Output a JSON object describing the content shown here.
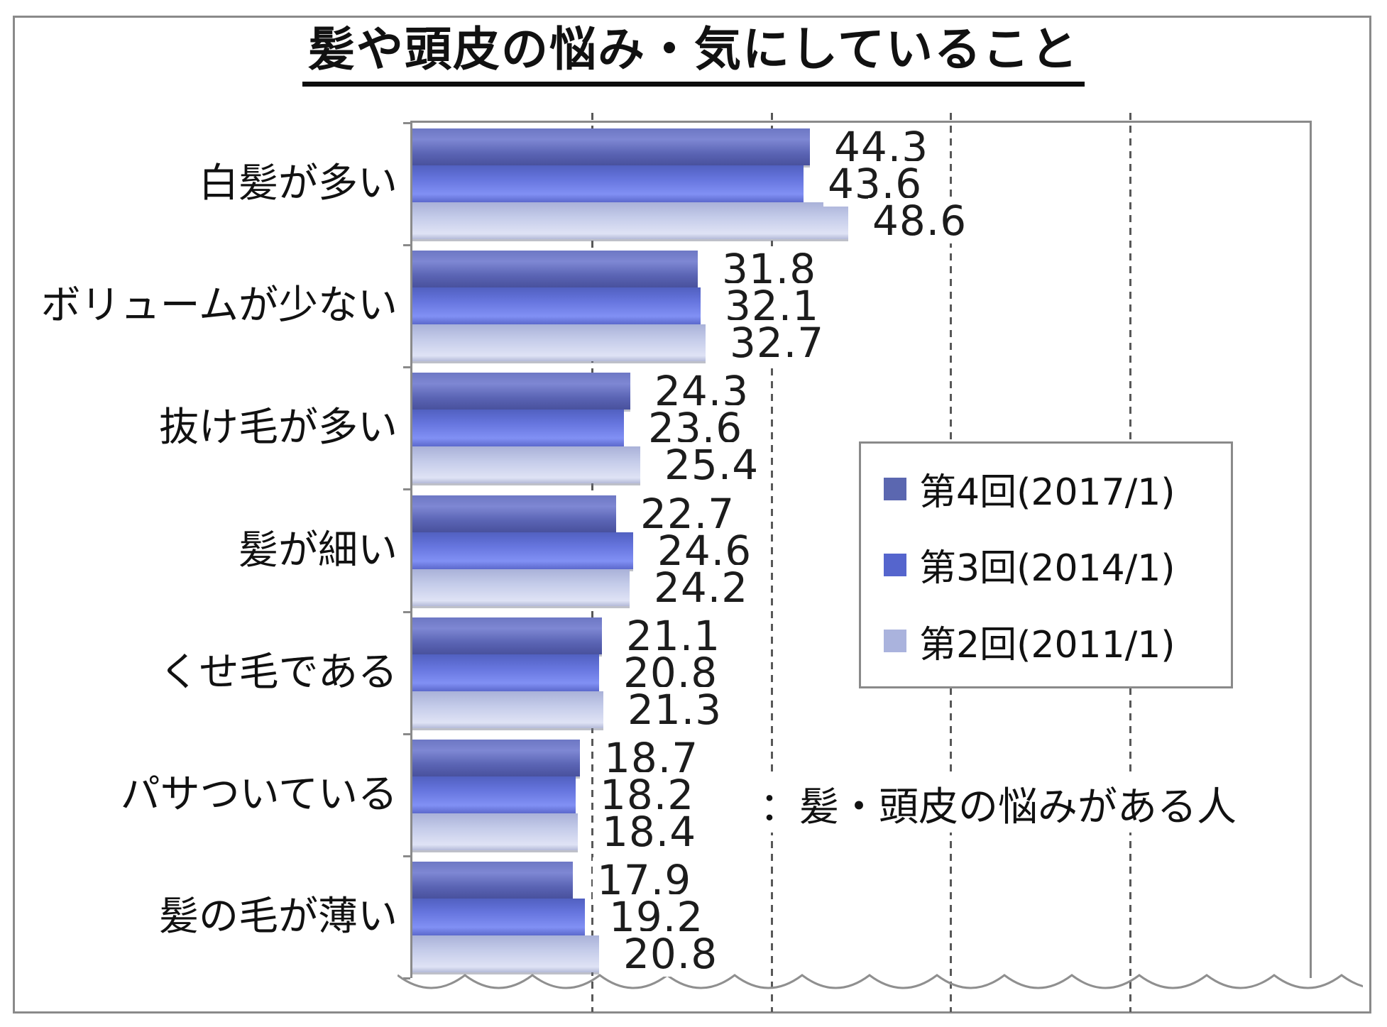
{
  "title": "髪や頭皮の悩み・気にしていること",
  "annotation": "：髪・頭皮の悩みがある人",
  "frame_color": "#8a8a8a",
  "gridline_color": "#585858",
  "legend": {
    "position": "middle-right",
    "items": [
      {
        "label": "第4回(2017/1)",
        "color": "#5b67b0"
      },
      {
        "label": "第3回(2014/1)",
        "color": "#5565cd"
      },
      {
        "label": "第2回(2011/1)",
        "color": "#aab3dd"
      }
    ]
  },
  "chart_data": {
    "type": "bar",
    "orientation": "horizontal",
    "title": "髪や頭皮の悩み・気にしていること",
    "categories": [
      "白髪が多い",
      "ボリュームが少ない",
      "抜け毛が多い",
      "髪が細い",
      "くせ毛である",
      "パサついている",
      "髪の毛が薄い"
    ],
    "series": [
      {
        "name": "第4回(2017/1)",
        "values": [
          44.3,
          31.8,
          24.3,
          22.7,
          21.1,
          18.7,
          17.9
        ]
      },
      {
        "name": "第3回(2014/1)",
        "values": [
          43.6,
          32.1,
          23.6,
          24.6,
          20.8,
          18.2,
          19.2
        ]
      },
      {
        "name": "第2回(2011/1)",
        "values": [
          48.6,
          32.7,
          25.4,
          24.2,
          21.3,
          18.4,
          20.8
        ]
      }
    ],
    "xlabel": "",
    "ylabel": "",
    "xlim": [
      0,
      100
    ],
    "gridlines": [
      20,
      40,
      60,
      80
    ],
    "grid_style": "dashed-vertical",
    "value_labels": "outside-end",
    "legend_position": "middle-right",
    "note": "：髪・頭皮の悩みがある人",
    "bottom_edge": "torn-wavy (axis cut off)"
  }
}
